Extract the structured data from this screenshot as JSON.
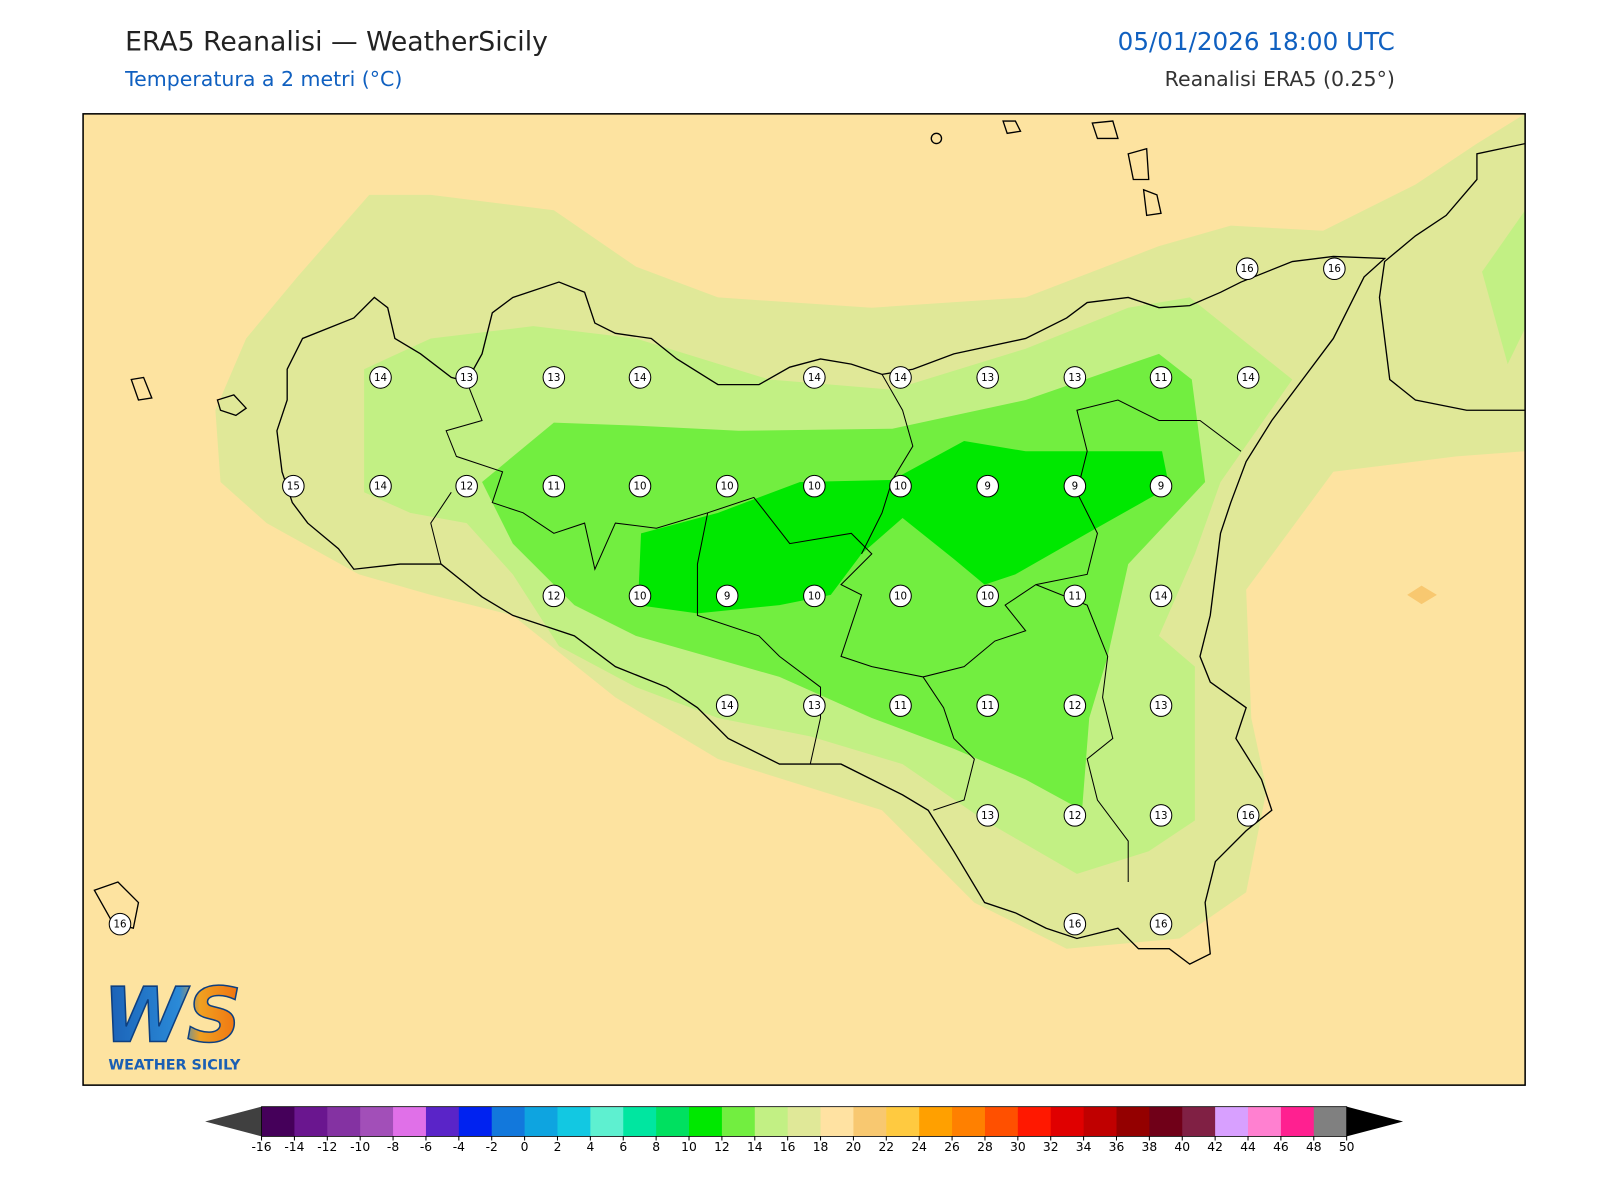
{
  "header": {
    "title": "ERA5 Reanalisi — WeatherSicily",
    "subtitle": "Temperatura a 2 metri (°C)",
    "datetime": "05/01/2026 18:00 UTC",
    "source": "Reanalisi ERA5 (0.25°)"
  },
  "logo": {
    "text": "WS",
    "caption": "WEATHER SICILY"
  },
  "stations": [
    16,
    16,
    14,
    13,
    13,
    14,
    14,
    14,
    13,
    13,
    11,
    14,
    15,
    14,
    12,
    11,
    10,
    10,
    10,
    10,
    9,
    9,
    9,
    12,
    10,
    9,
    10,
    10,
    10,
    11,
    14,
    14,
    13,
    11,
    11,
    12,
    13,
    13,
    12,
    13,
    16,
    16,
    16,
    16
  ],
  "colorbar": {
    "ticks": [
      -16,
      -14,
      -12,
      -10,
      -8,
      -6,
      -4,
      -2,
      0,
      2,
      4,
      6,
      8,
      10,
      12,
      14,
      16,
      18,
      20,
      22,
      24,
      26,
      28,
      30,
      32,
      34,
      36,
      38,
      40,
      42,
      44,
      46,
      48,
      50
    ],
    "colors": [
      "#45005a",
      "#6a168f",
      "#8432a2",
      "#a24fb8",
      "#e070e8",
      "#5a24c8",
      "#0022f0",
      "#1278dc",
      "#0ea4e0",
      "#12c8e2",
      "#5ef0d0",
      "#00e6a0",
      "#00e060",
      "#00e800",
      "#72ee40",
      "#c2f084",
      "#e0e898",
      "#ffe2a2",
      "#f8c870",
      "#ffca40",
      "#ffa000",
      "#ff8000",
      "#ff5000",
      "#ff1800",
      "#e00000",
      "#c00000",
      "#940000",
      "#700018",
      "#802044",
      "#d8a0ff",
      "#ff80d0",
      "#ff2090",
      "#808080"
    ],
    "under": "#404040",
    "over": "#000000"
  }
}
